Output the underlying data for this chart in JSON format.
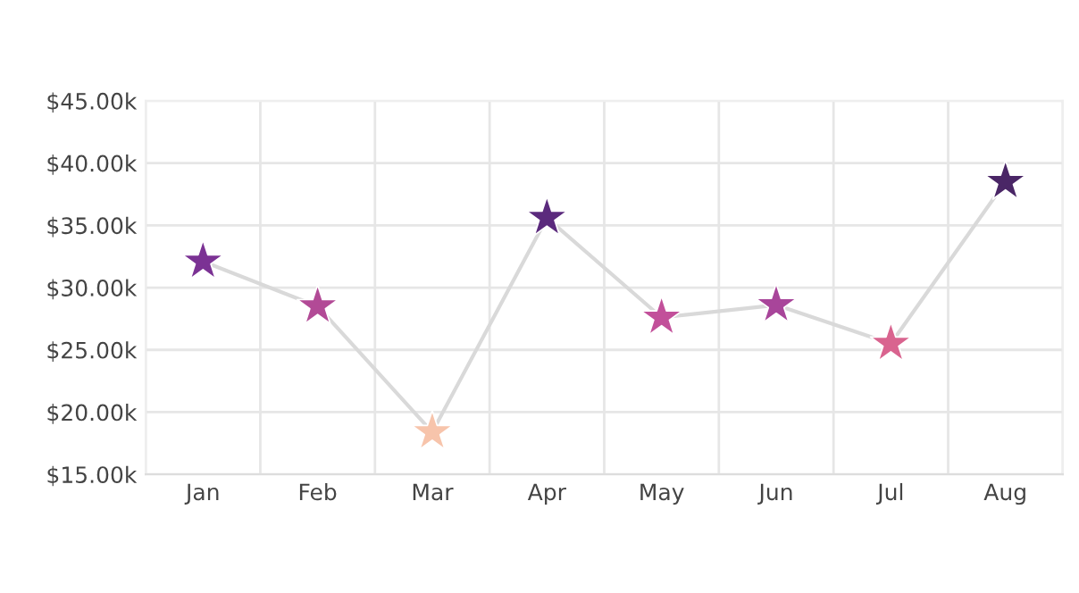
{
  "chart_data": {
    "type": "line",
    "categories": [
      "Jan",
      "Feb",
      "Mar",
      "Apr",
      "May",
      "Jun",
      "Jul",
      "Aug"
    ],
    "series": [
      {
        "color": "#d9d9d9",
        "values": [
          32.1,
          28.5,
          18.4,
          35.6,
          27.6,
          28.6,
          25.5,
          38.5
        ],
        "colors": [
          "#7b3294",
          "#b24a96",
          "#f7c4ab",
          "#5b2a7d",
          "#c2509a",
          "#a8459a",
          "#d9648f",
          "#4a2666"
        ]
      }
    ],
    "ylim": [
      15,
      45
    ],
    "yticks": [
      {
        "value": 15,
        "label": "$15.00k"
      },
      {
        "value": 20,
        "label": "$20.00k"
      },
      {
        "value": 25,
        "label": "$25.00k"
      },
      {
        "value": 30,
        "label": "$30.00k"
      },
      {
        "value": 35,
        "label": "$35.00k"
      },
      {
        "value": 40,
        "label": "$40.00k"
      },
      {
        "value": 45,
        "label": "$45.00k"
      }
    ],
    "grid": true,
    "marker": "star",
    "line_style": "solid"
  }
}
